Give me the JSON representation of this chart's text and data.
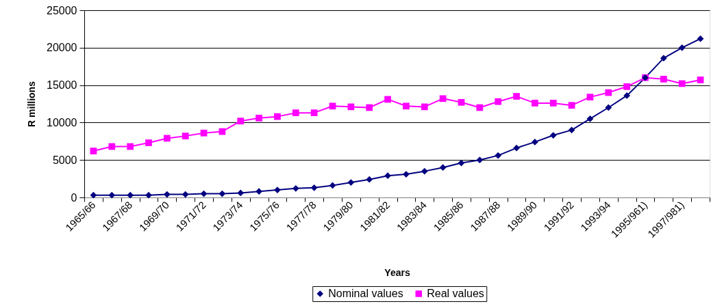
{
  "chart_data": {
    "type": "line",
    "xlabel": "Years",
    "ylabel": "R millions",
    "categories": [
      "1965/66",
      null,
      "1967/68",
      null,
      "1969/70",
      null,
      "1971/72",
      null,
      "1973/74",
      null,
      "1975/76",
      null,
      "1977/78",
      null,
      "1979/80",
      null,
      "1981/82",
      null,
      "1983/84",
      null,
      "1985/86",
      null,
      "1987/88",
      null,
      "1989/90",
      null,
      "1991/92",
      null,
      "1993/94",
      null,
      "1995/961)",
      null,
      "1997/981)",
      null
    ],
    "series": [
      {
        "name": "Nominal values",
        "color": "#000080",
        "marker": "diamond",
        "values": [
          300,
          300,
          300,
          300,
          400,
          400,
          500,
          500,
          600,
          800,
          1000,
          1200,
          1300,
          1600,
          2000,
          2400,
          2900,
          3100,
          3500,
          4000,
          4600,
          5000,
          5600,
          6600,
          7400,
          8300,
          9000,
          10500,
          12000,
          13600,
          16000,
          18600,
          20000,
          21200
        ]
      },
      {
        "name": "Real values",
        "color": "#ff00ff",
        "marker": "square",
        "values": [
          6200,
          6800,
          6800,
          7300,
          7900,
          8200,
          8600,
          8800,
          10200,
          10600,
          10800,
          11300,
          11300,
          12200,
          12100,
          12000,
          13100,
          12200,
          12100,
          13200,
          12700,
          12000,
          12800,
          13500,
          12600,
          12600,
          12300,
          13400,
          14000,
          14800,
          16000,
          15800,
          15200,
          15700
        ]
      }
    ],
    "ylim": [
      0,
      25000
    ],
    "yticks": [
      0,
      5000,
      10000,
      15000,
      20000,
      25000
    ],
    "grid": "y",
    "legend": "bottom"
  }
}
